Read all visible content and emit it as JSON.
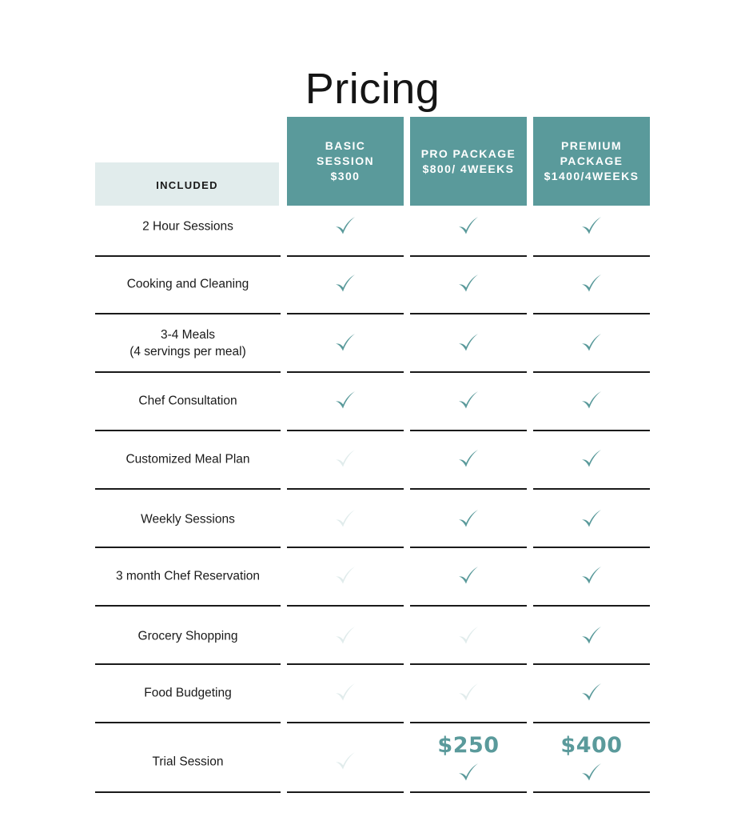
{
  "title": "Pricing",
  "included_label": "INCLUDED",
  "plans": [
    {
      "id": "basic",
      "lines": [
        "BASIC",
        "SESSION",
        "$300"
      ]
    },
    {
      "id": "pro",
      "lines": [
        "PRO PACKAGE",
        "$800/ 4WEEKS"
      ]
    },
    {
      "id": "premium",
      "lines": [
        "PREMIUM",
        "PACKAGE",
        "$1400/4WEEKS"
      ]
    }
  ],
  "features": [
    {
      "lines": [
        "2 Hour Sessions"
      ],
      "included": [
        true,
        true,
        true
      ]
    },
    {
      "lines": [
        "Cooking and Cleaning"
      ],
      "included": [
        true,
        true,
        true
      ]
    },
    {
      "lines": [
        "3-4 Meals",
        "(4 servings per meal)"
      ],
      "included": [
        true,
        true,
        true
      ]
    },
    {
      "lines": [
        "Chef Consultation"
      ],
      "included": [
        true,
        true,
        true
      ]
    },
    {
      "lines": [
        "Customized Meal Plan"
      ],
      "included": [
        false,
        true,
        true
      ]
    },
    {
      "lines": [
        "Weekly Sessions"
      ],
      "included": [
        false,
        true,
        true
      ]
    },
    {
      "lines": [
        "3 month Chef Reservation"
      ],
      "included": [
        false,
        true,
        true
      ]
    },
    {
      "lines": [
        "Grocery Shopping"
      ],
      "included": [
        false,
        false,
        true
      ]
    },
    {
      "lines": [
        "Food Budgeting"
      ],
      "included": [
        false,
        false,
        true
      ]
    },
    {
      "lines": [
        "Trial Session"
      ],
      "included": [
        false,
        true,
        true
      ],
      "prices": [
        "",
        "$250",
        "$400"
      ]
    }
  ],
  "colors": {
    "accent": "#5a9a9b",
    "accent_light": "#e1ecec",
    "check_active": "#5a9a9b",
    "check_inactive": "#e1ecec",
    "divider": "#1a1a1a"
  },
  "icons": {
    "check": "checkmark-icon"
  }
}
